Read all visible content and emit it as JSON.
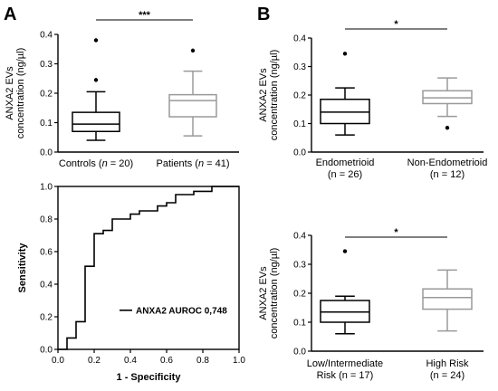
{
  "panels": {
    "A": "A",
    "B": "B"
  },
  "chart_data": [
    {
      "id": "A-box",
      "type": "box",
      "ylabel": [
        "ANXA2 EVs",
        "concentration (ng/µl)"
      ],
      "ylim": [
        0,
        0.4
      ],
      "yticks": [
        "0.0",
        "0.1",
        "0.2",
        "0.3",
        "0.4"
      ],
      "significance": "***",
      "groups": [
        {
          "label_parts": [
            "Controls (",
            "n",
            " = 20)"
          ],
          "color": "#000000",
          "min": 0.04,
          "q1": 0.07,
          "median": 0.095,
          "q3": 0.135,
          "max": 0.205,
          "outliers": [
            0.245,
            0.38
          ]
        },
        {
          "label_parts": [
            "Patients (",
            "n",
            " = 41)"
          ],
          "color": "#9a9a9a",
          "min": 0.055,
          "q1": 0.12,
          "median": 0.175,
          "q3": 0.195,
          "max": 0.275,
          "outliers": [
            0.345
          ]
        }
      ]
    },
    {
      "id": "A-roc",
      "type": "line",
      "xlabel": "1 - Specificity",
      "ylabel": "Sensitivity",
      "xlim": [
        0,
        1.0
      ],
      "ylim": [
        0,
        1.0
      ],
      "xticks": [
        "0.0",
        "0.2",
        "0.4",
        "0.6",
        "0.8",
        "1.0"
      ],
      "yticks": [
        "0.0",
        "0.2",
        "0.4",
        "0.6",
        "0.8",
        "1.0"
      ],
      "legend": "ANXA2 AUROC 0,748",
      "x": [
        0.0,
        0.05,
        0.05,
        0.1,
        0.1,
        0.15,
        0.15,
        0.2,
        0.2,
        0.25,
        0.25,
        0.3,
        0.3,
        0.4,
        0.4,
        0.45,
        0.45,
        0.55,
        0.55,
        0.6,
        0.6,
        0.65,
        0.65,
        0.75,
        0.75,
        0.85,
        0.85,
        1.0
      ],
      "y": [
        0.0,
        0.0,
        0.07,
        0.07,
        0.17,
        0.17,
        0.51,
        0.51,
        0.71,
        0.71,
        0.73,
        0.73,
        0.8,
        0.8,
        0.83,
        0.83,
        0.85,
        0.85,
        0.88,
        0.88,
        0.9,
        0.9,
        0.95,
        0.95,
        0.97,
        0.97,
        1.0,
        1.0
      ]
    },
    {
      "id": "B-box-top",
      "type": "box",
      "ylabel": [
        "ANXA2 EVs",
        "concentration (ng/µl)"
      ],
      "ylim": [
        0,
        0.4
      ],
      "yticks": [
        "0.0",
        "0.1",
        "0.2",
        "0.3",
        "0.4"
      ],
      "significance": "*",
      "groups": [
        {
          "label_lines": [
            "Endometrioid",
            "(n = 26)"
          ],
          "color": "#000000",
          "min": 0.06,
          "q1": 0.1,
          "median": 0.14,
          "q3": 0.185,
          "max": 0.225,
          "outliers": [
            0.345
          ]
        },
        {
          "label_lines": [
            "Non-Endometrioid",
            "(n = 12)"
          ],
          "color": "#9a9a9a",
          "min": 0.125,
          "q1": 0.17,
          "median": 0.19,
          "q3": 0.215,
          "max": 0.26,
          "outliers": [
            0.085
          ]
        }
      ]
    },
    {
      "id": "B-box-bottom",
      "type": "box",
      "ylabel": [
        "ANXA2 EVs",
        "concentration (ng/µl)"
      ],
      "ylim": [
        0,
        0.4
      ],
      "yticks": [
        "0.0",
        "0.1",
        "0.2",
        "0.3",
        "0.4"
      ],
      "significance": "*",
      "groups": [
        {
          "label_lines": [
            "Low/Intermediate",
            "Risk (n = 17)"
          ],
          "color": "#000000",
          "min": 0.06,
          "q1": 0.1,
          "median": 0.135,
          "q3": 0.175,
          "max": 0.19,
          "outliers": [
            0.345
          ]
        },
        {
          "label_lines": [
            "High Risk",
            "(n = 24)"
          ],
          "color": "#9a9a9a",
          "min": 0.07,
          "q1": 0.145,
          "median": 0.185,
          "q3": 0.215,
          "max": 0.28,
          "outliers": []
        }
      ]
    }
  ]
}
